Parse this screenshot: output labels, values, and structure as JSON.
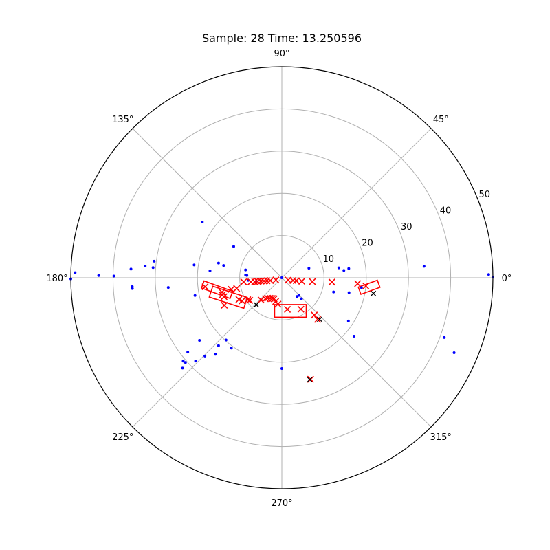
{
  "chart_data": {
    "type": "scatter",
    "projection": "polar",
    "title": "Sample: 28 Time: 13.250596",
    "theta_ticks": [
      {
        "deg": 0,
        "label": "0°"
      },
      {
        "deg": 45,
        "label": "45°"
      },
      {
        "deg": 90,
        "label": "90°"
      },
      {
        "deg": 135,
        "label": "135°"
      },
      {
        "deg": 180,
        "label": "180°"
      },
      {
        "deg": 225,
        "label": "225°"
      },
      {
        "deg": 270,
        "label": "270°"
      },
      {
        "deg": 315,
        "label": "315°"
      }
    ],
    "r_ticks": [
      10,
      20,
      30,
      40,
      50
    ],
    "r_tick_labels": [
      "10",
      "20",
      "30",
      "40",
      "50"
    ],
    "rlim": [
      0,
      50
    ],
    "rlabel_position_deg": 22.5,
    "grid": true,
    "colors": {
      "points": "#0000ff",
      "detections": "#ff0000",
      "tracks": "#000000",
      "grid": "#b0b0b0"
    },
    "points": [
      {
        "r": 49.0,
        "theta": 0.9
      },
      {
        "r": 50.0,
        "theta": 0.2
      },
      {
        "r": 44.5,
        "theta": 336.5
      },
      {
        "r": 41.0,
        "theta": 339.8
      },
      {
        "r": 33.8,
        "theta": 4.6
      },
      {
        "r": 18.8,
        "theta": 327.0
      },
      {
        "r": 22.0,
        "theta": 321.0
      },
      {
        "r": 19.0,
        "theta": 353.0
      },
      {
        "r": 16.0,
        "theta": 7.8
      },
      {
        "r": 13.7,
        "theta": 9.8
      },
      {
        "r": 14.8,
        "theta": 6.7
      },
      {
        "r": 16.3,
        "theta": 347.5
      },
      {
        "r": 12.7,
        "theta": 344.7
      },
      {
        "r": 6.8,
        "theta": 19.5
      },
      {
        "r": 21.5,
        "theta": 270.0
      },
      {
        "r": 6.8,
        "theta": 313.0
      },
      {
        "r": 5.7,
        "theta": 309.0
      },
      {
        "r": 5.8,
        "theta": 314.0
      },
      {
        "r": 50.0,
        "theta": 180.3
      },
      {
        "r": 49.0,
        "theta": 178.6
      },
      {
        "r": 43.4,
        "theta": 179.3
      },
      {
        "r": 39.8,
        "theta": 179.4
      },
      {
        "r": 35.8,
        "theta": 176.7
      },
      {
        "r": 32.5,
        "theta": 175.1
      },
      {
        "r": 30.5,
        "theta": 172.6
      },
      {
        "r": 30.6,
        "theta": 175.5
      },
      {
        "r": 35.5,
        "theta": 183.4
      },
      {
        "r": 35.5,
        "theta": 184.1
      },
      {
        "r": 27.0,
        "theta": 184.9
      },
      {
        "r": 21.0,
        "theta": 171.7
      },
      {
        "r": 14.1,
        "theta": 168.1
      },
      {
        "r": 15.4,
        "theta": 166.9
      },
      {
        "r": 17.1,
        "theta": 174.5
      },
      {
        "r": 21.0,
        "theta": 191.5
      },
      {
        "r": 8.6,
        "theta": 175.7
      },
      {
        "r": 23.0,
        "theta": 145.0
      },
      {
        "r": 13.6,
        "theta": 147.0
      },
      {
        "r": 8.8,
        "theta": 167.8
      },
      {
        "r": 8.3,
        "theta": 176.2
      },
      {
        "r": 8.0,
        "theta": 184.2
      },
      {
        "r": 6.1,
        "theta": 187.8
      },
      {
        "r": 0.0,
        "theta": 0.0
      },
      {
        "r": 24.0,
        "theta": 229.0
      },
      {
        "r": 26.0,
        "theta": 225.5
      },
      {
        "r": 22.0,
        "theta": 227.0
      },
      {
        "r": 19.8,
        "theta": 228.1
      },
      {
        "r": 20.5,
        "theta": 234.3
      },
      {
        "r": 24.5,
        "theta": 217.2
      },
      {
        "r": 28.4,
        "theta": 218.3
      },
      {
        "r": 30.6,
        "theta": 220.2
      },
      {
        "r": 30.4,
        "theta": 221.3
      },
      {
        "r": 31.8,
        "theta": 222.3
      },
      {
        "r": 28.4,
        "theta": 224.0
      }
    ],
    "detections": [
      {
        "r": 9.1,
        "theta": 186.1
      },
      {
        "r": 7.4,
        "theta": 187.5
      },
      {
        "r": 6.5,
        "theta": 188.2
      },
      {
        "r": 5.8,
        "theta": 188.6
      },
      {
        "r": 5.0,
        "theta": 189.1
      },
      {
        "r": 4.3,
        "theta": 190.1
      },
      {
        "r": 3.6,
        "theta": 191.4
      },
      {
        "r": 2.8,
        "theta": 193.6
      },
      {
        "r": 1.5,
        "theta": 200.0
      },
      {
        "r": 1.6,
        "theta": 340.0
      },
      {
        "r": 2.7,
        "theta": 346.2
      },
      {
        "r": 3.5,
        "theta": 348.3
      },
      {
        "r": 4.8,
        "theta": 350.0
      },
      {
        "r": 7.3,
        "theta": 352.9
      },
      {
        "r": 11.9,
        "theta": 355.1
      },
      {
        "r": 18.0,
        "theta": 355.6
      },
      {
        "r": 20.0,
        "theta": 354.4
      },
      {
        "r": 11.0,
        "theta": 193.3
      },
      {
        "r": 12.3,
        "theta": 192.9
      },
      {
        "r": 14.6,
        "theta": 193.4
      },
      {
        "r": 14.7,
        "theta": 196.0
      },
      {
        "r": 14.4,
        "theta": 198.1
      },
      {
        "r": 18.3,
        "theta": 186.7
      },
      {
        "r": 15.1,
        "theta": 205.5
      },
      {
        "r": 11.4,
        "theta": 206.8
      },
      {
        "r": 10.9,
        "theta": 210.1
      },
      {
        "r": 9.6,
        "theta": 212.8
      },
      {
        "r": 9.3,
        "theta": 215.1
      },
      {
        "r": 7.2,
        "theta": 226.8
      },
      {
        "r": 6.3,
        "theta": 231.8
      },
      {
        "r": 5.9,
        "theta": 235.1
      },
      {
        "r": 5.6,
        "theta": 240.2
      },
      {
        "r": 5.4,
        "theta": 245.2
      },
      {
        "r": 5.3,
        "theta": 249.8
      },
      {
        "r": 5.8,
        "theta": 255.4
      },
      {
        "r": 6.3,
        "theta": 261.6
      },
      {
        "r": 7.6,
        "theta": 280.0
      },
      {
        "r": 8.7,
        "theta": 301.3
      },
      {
        "r": 11.7,
        "theta": 311.1
      },
      {
        "r": 13.0,
        "theta": 310.7
      },
      {
        "r": 25.0,
        "theta": 285.8
      }
    ],
    "tracks": [
      {
        "r": 8.8,
        "theta": 226.6
      },
      {
        "r": 13.3,
        "theta": 312.3
      },
      {
        "r": 22.0,
        "theta": 350.3
      },
      {
        "r": 25.0,
        "theta": 285.3
      }
    ],
    "boxes": [
      {
        "cx_r": 13.5,
        "cx_theta": 200.0,
        "len": 8.6,
        "wid": 2.7,
        "heading_deg": 18
      },
      {
        "cx_r": 15.6,
        "cx_theta": 190.4,
        "len": 7.2,
        "wid": 1.8,
        "heading_deg": 20
      },
      {
        "cx_r": 8.1,
        "cx_theta": 284.5,
        "len": 7.5,
        "wid": 3.0,
        "heading_deg": 0
      },
      {
        "cx_r": 20.8,
        "cx_theta": 353.8,
        "len": 4.8,
        "wid": 1.8,
        "heading_deg": -20
      }
    ]
  }
}
